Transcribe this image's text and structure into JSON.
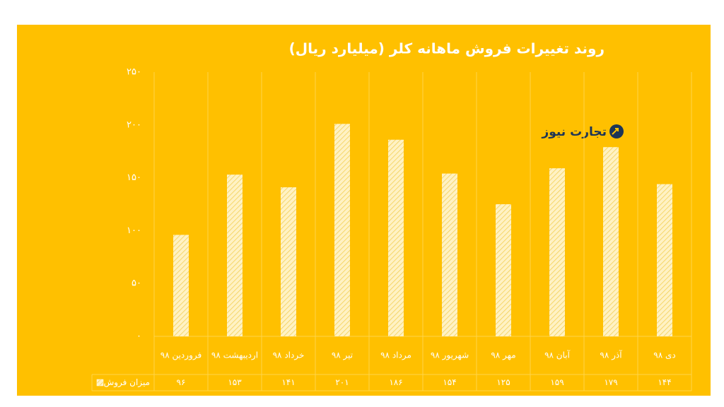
{
  "chart_data": {
    "type": "bar",
    "title": "روند تغییرات فروش ماهانه کلر (میلیارد ریال)",
    "watermark": "تجارت نیوز",
    "categories": [
      "فروردین ۹۸",
      "اردیبهشت ۹۸",
      "خرداد ۹۸",
      "تیر ۹۸",
      "مرداد ۹۸",
      "شهریور ۹۸",
      "مهر ۹۸",
      "آبان ۹۸",
      "آذر ۹۸",
      "دی ۹۸"
    ],
    "series": [
      {
        "name": "میزان فروش",
        "color": "#fff2c4",
        "values": [
          96,
          153,
          141,
          201,
          186,
          154,
          125,
          159,
          179,
          144
        ],
        "value_labels": [
          "۹۶",
          "۱۵۳",
          "۱۴۱",
          "۲۰۱",
          "۱۸۶",
          "۱۵۴",
          "۱۲۵",
          "۱۵۹",
          "۱۷۹",
          "۱۴۴"
        ]
      }
    ],
    "ylim": [
      0,
      250
    ],
    "yticks": [
      {
        "value": 0,
        "label": "۰"
      },
      {
        "value": 50,
        "label": "۵۰"
      },
      {
        "value": 100,
        "label": "۱۰۰"
      },
      {
        "value": 150,
        "label": "۱۵۰"
      },
      {
        "value": 200,
        "label": "۲۰۰"
      },
      {
        "value": 250,
        "label": "۲۵۰"
      }
    ],
    "grid": true
  }
}
